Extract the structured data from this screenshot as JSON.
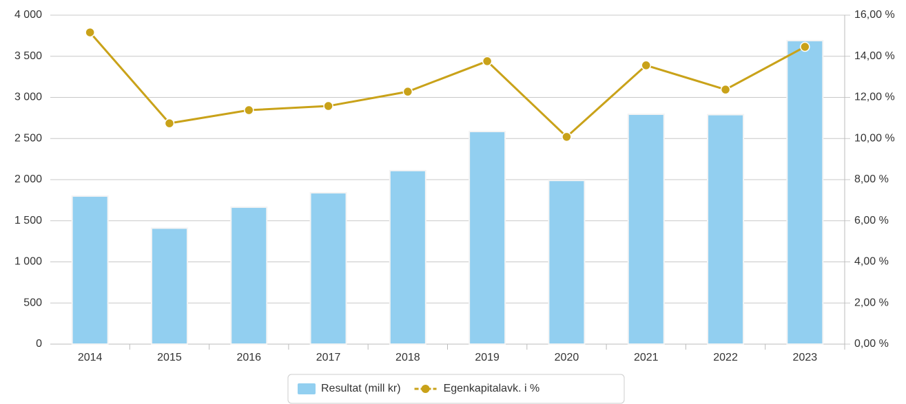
{
  "chart_data": {
    "type": "bar",
    "categories": [
      "2014",
      "2015",
      "2016",
      "2017",
      "2018",
      "2019",
      "2020",
      "2021",
      "2022",
      "2023"
    ],
    "series": [
      {
        "name": "Resultat (mill kr)",
        "color": "#92cff0",
        "type": "bar",
        "values": [
          1800,
          1410,
          1665,
          1840,
          2110,
          2585,
          1990,
          2795,
          2790,
          3690
        ]
      },
      {
        "name": "Egenkapitalavk. i %",
        "color": "#c9a219",
        "type": "line",
        "axis": "y2",
        "values": [
          15.16,
          10.74,
          11.38,
          11.58,
          12.28,
          13.76,
          10.08,
          13.56,
          12.38,
          14.46
        ]
      }
    ],
    "ylim": [
      0,
      4000
    ],
    "yticks": [
      0,
      500,
      {
        "value": 1000,
        "label": "1 000"
      },
      {
        "value": 1500,
        "label": "1 500"
      },
      {
        "value": 2000,
        "label": "2 000"
      },
      {
        "value": 2500,
        "label": "2 500"
      },
      {
        "value": 3000,
        "label": "3 000"
      },
      {
        "value": 3500,
        "label": "3 500"
      },
      {
        "value": 4000,
        "label": "4 000"
      }
    ],
    "y2lim": [
      0,
      16
    ],
    "y2ticks": [
      {
        "value": 0,
        "label": "0,00 %"
      },
      {
        "value": 2,
        "label": "2,00 %"
      },
      {
        "value": 4,
        "label": "4,00 %"
      },
      {
        "value": 6,
        "label": "6,00 %"
      },
      {
        "value": 8,
        "label": "8,00 %"
      },
      {
        "value": 10,
        "label": "10,00 %"
      },
      {
        "value": 12,
        "label": "12,00 %"
      },
      {
        "value": 14,
        "label": "14,00 %"
      },
      {
        "value": 16,
        "label": "16,00 %"
      }
    ],
    "grid": true,
    "legend": "bottom"
  }
}
